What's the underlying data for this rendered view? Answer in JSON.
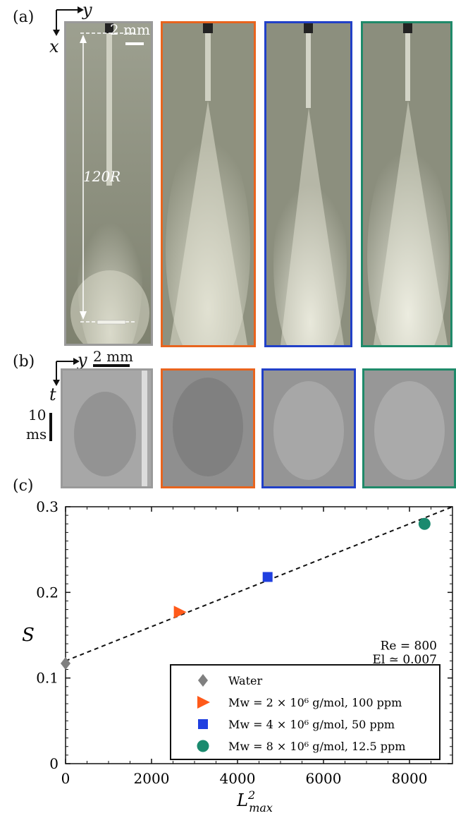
{
  "panel_a": {
    "label": "(a)",
    "axis_y": "y",
    "axis_x": "x",
    "scale": "2 mm",
    "length": "120R",
    "frame_colors": [
      "#9a9a9a",
      "#e8641e",
      "#2140c8",
      "#1f8a6a"
    ]
  },
  "panel_b": {
    "label": "(b)",
    "axis_y": "y",
    "axis_t": "t",
    "scale": "2 mm",
    "time_value": "10",
    "time_unit": "ms",
    "frame_colors": [
      "#9a9a9a",
      "#e8641e",
      "#2140c8",
      "#1f8a6a"
    ]
  },
  "panel_c": {
    "label": "(c)",
    "annotation_re": "Re = 800",
    "annotation_el": "El ≃ 0.007"
  },
  "chart_data": {
    "type": "scatter",
    "xlabel": "L²max",
    "ylabel": "S",
    "xlim": [
      0,
      9000
    ],
    "ylim": [
      0,
      0.3
    ],
    "xticks": [
      "0",
      "2000",
      "4000",
      "6000",
      "8000"
    ],
    "yticks": [
      "0",
      "0.1",
      "0.2",
      "0.3"
    ],
    "series": [
      {
        "name": "Water",
        "x": 0,
        "y": 0.117,
        "marker": "diamond",
        "color": "#808080"
      },
      {
        "name": "Mw = 2 × 10⁶ g/mol, 100 ppm",
        "x": 2650,
        "y": 0.177,
        "marker": "triangle-right",
        "color": "#ff5a1a"
      },
      {
        "name": "Mw = 4 × 10⁶ g/mol, 50 ppm",
        "x": 4700,
        "y": 0.218,
        "marker": "square",
        "color": "#1f3fe0"
      },
      {
        "name": "Mw = 8 × 10⁶ g/mol, 12.5 ppm",
        "x": 8350,
        "y": 0.28,
        "marker": "circle",
        "color": "#1a8a6e"
      }
    ],
    "fit_line": {
      "x": [
        0,
        9000
      ],
      "y": [
        0.12,
        0.3
      ]
    },
    "legend": "bottom-right",
    "grid": false
  }
}
